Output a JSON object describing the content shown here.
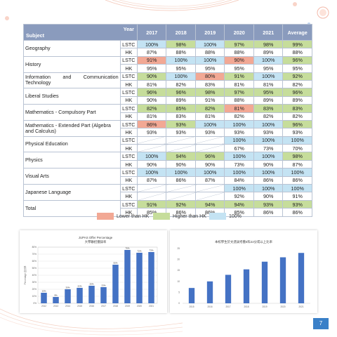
{
  "table": {
    "corner_year": "Year",
    "corner_subject": "Subject",
    "years": [
      "2017",
      "2018",
      "2019",
      "2020",
      "2021"
    ],
    "average_label": "Average",
    "rows": [
      {
        "subject": "Geography",
        "justify": false,
        "lines": [
          {
            "school": "LSTC",
            "cells": [
              {
                "v": "100%",
                "c": "blue"
              },
              {
                "v": "98%",
                "c": "green"
              },
              {
                "v": "100%",
                "c": "blue"
              },
              {
                "v": "97%",
                "c": "green"
              },
              {
                "v": "98%",
                "c": "green"
              },
              {
                "v": "99%",
                "c": "green"
              }
            ]
          },
          {
            "school": "HK",
            "cells": [
              {
                "v": "87%",
                "c": "none"
              },
              {
                "v": "88%",
                "c": "none"
              },
              {
                "v": "88%",
                "c": "none"
              },
              {
                "v": "88%",
                "c": "none"
              },
              {
                "v": "89%",
                "c": "none"
              },
              {
                "v": "88%",
                "c": "none"
              }
            ]
          }
        ]
      },
      {
        "subject": "History",
        "justify": false,
        "lines": [
          {
            "school": "LSTC",
            "cells": [
              {
                "v": "91%",
                "c": "red"
              },
              {
                "v": "100%",
                "c": "blue"
              },
              {
                "v": "100%",
                "c": "blue"
              },
              {
                "v": "90%",
                "c": "red"
              },
              {
                "v": "100%",
                "c": "blue"
              },
              {
                "v": "96%",
                "c": "green"
              }
            ]
          },
          {
            "school": "HK",
            "cells": [
              {
                "v": "95%",
                "c": "none"
              },
              {
                "v": "95%",
                "c": "none"
              },
              {
                "v": "95%",
                "c": "none"
              },
              {
                "v": "95%",
                "c": "none"
              },
              {
                "v": "95%",
                "c": "none"
              },
              {
                "v": "95%",
                "c": "none"
              }
            ]
          }
        ]
      },
      {
        "subject": "Information and Communication Technology",
        "justify": true,
        "lines": [
          {
            "school": "LSTC",
            "cells": [
              {
                "v": "90%",
                "c": "green"
              },
              {
                "v": "100%",
                "c": "blue"
              },
              {
                "v": "80%",
                "c": "red"
              },
              {
                "v": "91%",
                "c": "green"
              },
              {
                "v": "100%",
                "c": "blue"
              },
              {
                "v": "92%",
                "c": "green"
              }
            ]
          },
          {
            "school": "HK",
            "cells": [
              {
                "v": "81%",
                "c": "none"
              },
              {
                "v": "82%",
                "c": "none"
              },
              {
                "v": "83%",
                "c": "none"
              },
              {
                "v": "81%",
                "c": "none"
              },
              {
                "v": "81%",
                "c": "none"
              },
              {
                "v": "82%",
                "c": "none"
              }
            ]
          }
        ]
      },
      {
        "subject": "Liberal Studies",
        "justify": false,
        "lines": [
          {
            "school": "LSTC",
            "cells": [
              {
                "v": "96%",
                "c": "green"
              },
              {
                "v": "96%",
                "c": "green"
              },
              {
                "v": "98%",
                "c": "green"
              },
              {
                "v": "97%",
                "c": "green"
              },
              {
                "v": "95%",
                "c": "green"
              },
              {
                "v": "96%",
                "c": "green"
              }
            ]
          },
          {
            "school": "HK",
            "cells": [
              {
                "v": "90%",
                "c": "none"
              },
              {
                "v": "89%",
                "c": "none"
              },
              {
                "v": "91%",
                "c": "none"
              },
              {
                "v": "88%",
                "c": "none"
              },
              {
                "v": "89%",
                "c": "none"
              },
              {
                "v": "89%",
                "c": "none"
              }
            ]
          }
        ]
      },
      {
        "subject": "Mathematics - Compulsory Part",
        "justify": false,
        "lines": [
          {
            "school": "LSTC",
            "cells": [
              {
                "v": "82%",
                "c": "green"
              },
              {
                "v": "85%",
                "c": "green"
              },
              {
                "v": "82%",
                "c": "green"
              },
              {
                "v": "81%",
                "c": "red"
              },
              {
                "v": "83%",
                "c": "green"
              },
              {
                "v": "83%",
                "c": "green"
              }
            ]
          },
          {
            "school": "HK",
            "cells": [
              {
                "v": "81%",
                "c": "none"
              },
              {
                "v": "83%",
                "c": "none"
              },
              {
                "v": "81%",
                "c": "none"
              },
              {
                "v": "82%",
                "c": "none"
              },
              {
                "v": "82%",
                "c": "none"
              },
              {
                "v": "82%",
                "c": "none"
              }
            ]
          }
        ]
      },
      {
        "subject": "Mathematics - Extended Part (Algebra and Calculus)",
        "justify": false,
        "lines": [
          {
            "school": "LSTC",
            "cells": [
              {
                "v": "86%",
                "c": "red"
              },
              {
                "v": "93%",
                "c": "green"
              },
              {
                "v": "100%",
                "c": "blue"
              },
              {
                "v": "100%",
                "c": "blue"
              },
              {
                "v": "100%",
                "c": "blue"
              },
              {
                "v": "96%",
                "c": "green"
              }
            ]
          },
          {
            "school": "HK",
            "cells": [
              {
                "v": "93%",
                "c": "none"
              },
              {
                "v": "93%",
                "c": "none"
              },
              {
                "v": "93%",
                "c": "none"
              },
              {
                "v": "93%",
                "c": "none"
              },
              {
                "v": "93%",
                "c": "none"
              },
              {
                "v": "93%",
                "c": "none"
              }
            ]
          }
        ]
      },
      {
        "subject": "Physical Education",
        "justify": false,
        "lines": [
          {
            "school": "LSTC",
            "cells": [
              {
                "v": "",
                "c": "slash"
              },
              {
                "v": "",
                "c": "slash"
              },
              {
                "v": "",
                "c": "slash"
              },
              {
                "v": "100%",
                "c": "blue"
              },
              {
                "v": "100%",
                "c": "blue"
              },
              {
                "v": "100%",
                "c": "blue"
              }
            ]
          },
          {
            "school": "HK",
            "cells": [
              {
                "v": "",
                "c": "slash"
              },
              {
                "v": "",
                "c": "slash"
              },
              {
                "v": "",
                "c": "slash"
              },
              {
                "v": "67%",
                "c": "none"
              },
              {
                "v": "73%",
                "c": "none"
              },
              {
                "v": "70%",
                "c": "none"
              }
            ]
          }
        ]
      },
      {
        "subject": "Physics",
        "justify": false,
        "lines": [
          {
            "school": "LSTC",
            "cells": [
              {
                "v": "100%",
                "c": "blue"
              },
              {
                "v": "94%",
                "c": "green"
              },
              {
                "v": "96%",
                "c": "green"
              },
              {
                "v": "100%",
                "c": "blue"
              },
              {
                "v": "100%",
                "c": "blue"
              },
              {
                "v": "98%",
                "c": "green"
              }
            ]
          },
          {
            "school": "HK",
            "cells": [
              {
                "v": "90%",
                "c": "none"
              },
              {
                "v": "90%",
                "c": "none"
              },
              {
                "v": "90%",
                "c": "none"
              },
              {
                "v": "73%",
                "c": "none"
              },
              {
                "v": "90%",
                "c": "none"
              },
              {
                "v": "87%",
                "c": "none"
              }
            ]
          }
        ]
      },
      {
        "subject": "Visual Arts",
        "justify": false,
        "lines": [
          {
            "school": "LSTC",
            "cells": [
              {
                "v": "100%",
                "c": "blue"
              },
              {
                "v": "100%",
                "c": "blue"
              },
              {
                "v": "100%",
                "c": "blue"
              },
              {
                "v": "100%",
                "c": "blue"
              },
              {
                "v": "100%",
                "c": "blue"
              },
              {
                "v": "100%",
                "c": "blue"
              }
            ]
          },
          {
            "school": "HK",
            "cells": [
              {
                "v": "87%",
                "c": "none"
              },
              {
                "v": "86%",
                "c": "none"
              },
              {
                "v": "87%",
                "c": "none"
              },
              {
                "v": "84%",
                "c": "none"
              },
              {
                "v": "86%",
                "c": "none"
              },
              {
                "v": "86%",
                "c": "none"
              }
            ]
          }
        ]
      },
      {
        "subject": "Japanese Language",
        "justify": false,
        "lines": [
          {
            "school": "LSTC",
            "cells": [
              {
                "v": "",
                "c": "slash"
              },
              {
                "v": "",
                "c": "slash"
              },
              {
                "v": "",
                "c": "slash"
              },
              {
                "v": "100%",
                "c": "blue"
              },
              {
                "v": "100%",
                "c": "blue"
              },
              {
                "v": "100%",
                "c": "blue"
              }
            ]
          },
          {
            "school": "HK",
            "cells": [
              {
                "v": "",
                "c": "slash"
              },
              {
                "v": "",
                "c": "slash"
              },
              {
                "v": "",
                "c": "slash"
              },
              {
                "v": "92%",
                "c": "none"
              },
              {
                "v": "90%",
                "c": "none"
              },
              {
                "v": "91%",
                "c": "none"
              }
            ]
          }
        ]
      },
      {
        "subject": "Total",
        "justify": false,
        "lines": [
          {
            "school": "LSTC",
            "cells": [
              {
                "v": "91%",
                "c": "green"
              },
              {
                "v": "92%",
                "c": "green"
              },
              {
                "v": "94%",
                "c": "green"
              },
              {
                "v": "94%",
                "c": "green"
              },
              {
                "v": "93%",
                "c": "green"
              },
              {
                "v": "93%",
                "c": "green"
              }
            ]
          },
          {
            "school": "HK",
            "cells": [
              {
                "v": "85%",
                "c": "none"
              },
              {
                "v": "86%",
                "c": "none"
              },
              {
                "v": "86%",
                "c": "none"
              },
              {
                "v": "85%",
                "c": "none"
              },
              {
                "v": "86%",
                "c": "none"
              },
              {
                "v": "86%",
                "c": "none"
              }
            ]
          }
        ]
      }
    ]
  },
  "legend": [
    {
      "label": "Lower than HK",
      "color": "#f2a894"
    },
    {
      "label": "Higher than HK",
      "color": "#c6dd9b"
    },
    {
      "label": "100%",
      "color": "#c4e3f3"
    }
  ],
  "colors": {
    "red": "#f2a894",
    "green": "#c6dd9b",
    "blue": "#c4e3f3",
    "header": "#8a9bbd",
    "bar": "#4472c4",
    "page_badge": "#3a80c8"
  },
  "page_number": "7",
  "chart_data": [
    {
      "type": "bar",
      "title": "JUPAS Offer Percentage",
      "subtitle": "大學聯招獲錄率",
      "ylabel": "Percentage 百分率",
      "categories": [
        "2012",
        "2013",
        "2014",
        "2015",
        "2016",
        "2017",
        "2018",
        "2019",
        "2020",
        "2021"
      ],
      "values": [
        15,
        9,
        20,
        22,
        25,
        23,
        55,
        76,
        72,
        73
      ],
      "data_labels": [
        "15%",
        "9%",
        "20%",
        "22%",
        "25%",
        "23%",
        "55%",
        "76%",
        "72%",
        "73%"
      ],
      "ylim": [
        0,
        80
      ],
      "yticks": [
        "0%",
        "10%",
        "20%",
        "30%",
        "40%",
        "50%",
        "60%",
        "70%",
        "80%"
      ],
      "grid": true
    },
    {
      "type": "bar",
      "title": "本校學生於文憑試考獲5科22分或以上比率",
      "categories": [
        "2015",
        "2016",
        "2017",
        "2018",
        "2019",
        "2020",
        "2021"
      ],
      "values": [
        7,
        10,
        13,
        15.5,
        19,
        21,
        23
      ],
      "ylim": [
        0,
        25
      ],
      "yticks": [
        "0",
        "5",
        "10",
        "15",
        "20",
        "25"
      ],
      "grid": false
    }
  ]
}
